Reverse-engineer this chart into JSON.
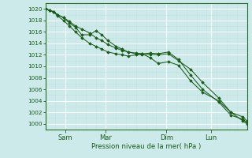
{
  "bg_color": "#cceaea",
  "grid_color": "#b8d8d8",
  "line_color": "#1a5c1a",
  "ylim": [
    999,
    1021
  ],
  "xlim": [
    0,
    100
  ],
  "yticks": [
    1000,
    1002,
    1004,
    1006,
    1008,
    1010,
    1012,
    1014,
    1016,
    1018,
    1020
  ],
  "xtick_labels": [
    "Sam",
    "Mar",
    "Dim",
    "Lun"
  ],
  "xtick_positions": [
    10,
    30,
    60,
    82
  ],
  "xlabel": "Pression niveau de la mer( hPa )",
  "series1_x": [
    0,
    2,
    4,
    6,
    9,
    12,
    15,
    18,
    22,
    25,
    28,
    31,
    35,
    38,
    41,
    45,
    48,
    52,
    56,
    61,
    66,
    72,
    78,
    86,
    92,
    98,
    100
  ],
  "series1_y": [
    1020,
    1019.8,
    1019.5,
    1019,
    1018.5,
    1017.5,
    1016.8,
    1015.5,
    1015.5,
    1016.2,
    1015.5,
    1014.5,
    1013.5,
    1013.0,
    1012.5,
    1012.2,
    1012.0,
    1012.1,
    1012.0,
    1012.2,
    1011.0,
    1009.5,
    1007.2,
    1004.5,
    1002.0,
    1000.5,
    1000
  ],
  "series2_x": [
    0,
    2,
    4,
    6,
    9,
    12,
    15,
    18,
    22,
    25,
    28,
    31,
    35,
    38,
    41,
    45,
    48,
    52,
    56,
    61,
    66,
    72,
    78,
    86,
    92,
    98,
    100
  ],
  "series2_y": [
    1020,
    1019.8,
    1019.5,
    1019,
    1018.5,
    1017.8,
    1017.0,
    1016.5,
    1015.8,
    1015.0,
    1014.5,
    1013.8,
    1013.2,
    1012.8,
    1012.5,
    1012.3,
    1012.2,
    1012.3,
    1012.2,
    1012.5,
    1011.2,
    1008.5,
    1006.0,
    1003.8,
    1001.5,
    1000.8,
    1000.2
  ],
  "series3_x": [
    0,
    2,
    4,
    6,
    9,
    12,
    15,
    18,
    22,
    25,
    28,
    31,
    35,
    38,
    41,
    45,
    48,
    52,
    56,
    61,
    66,
    72,
    78,
    86,
    92,
    98,
    100
  ],
  "series3_y": [
    1020,
    1019.8,
    1019.5,
    1018.8,
    1018.0,
    1017.0,
    1016.0,
    1015.0,
    1014.0,
    1013.5,
    1013.0,
    1012.5,
    1012.2,
    1012.0,
    1011.8,
    1012.0,
    1012.2,
    1011.5,
    1010.5,
    1010.8,
    1010.2,
    1007.5,
    1005.5,
    1004.0,
    1002.0,
    1001.2,
    1000.5
  ]
}
